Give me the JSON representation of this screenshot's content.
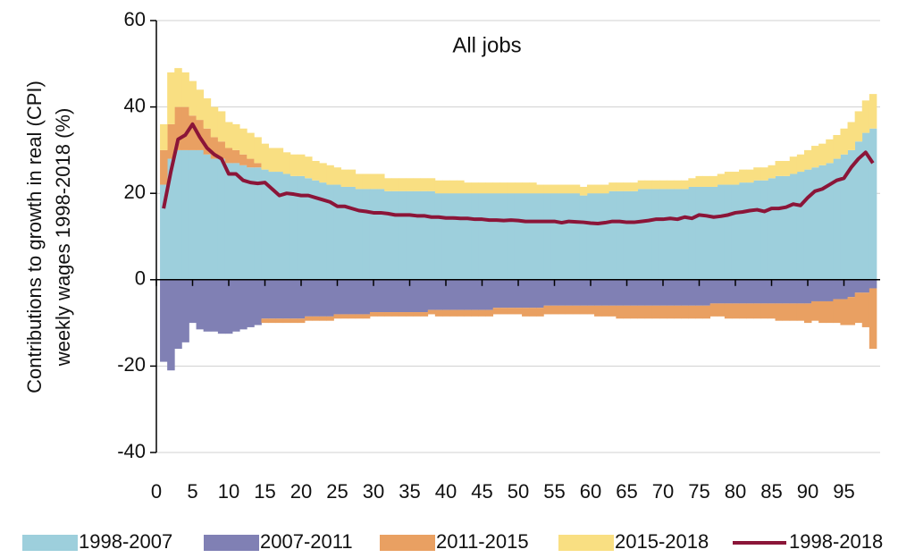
{
  "chart_data": {
    "type": "stacked_bar_line",
    "annotation": "All jobs",
    "ylabel": [
      "Contributions to growth in real (CPI)",
      "weekly wages 1998-2018 (%)"
    ],
    "x": [
      1,
      2,
      3,
      4,
      5,
      6,
      7,
      8,
      9,
      10,
      11,
      12,
      13,
      14,
      15,
      16,
      17,
      18,
      19,
      20,
      21,
      22,
      23,
      24,
      25,
      26,
      27,
      28,
      29,
      30,
      31,
      32,
      33,
      34,
      35,
      36,
      37,
      38,
      39,
      40,
      41,
      42,
      43,
      44,
      45,
      46,
      47,
      48,
      49,
      50,
      51,
      52,
      53,
      54,
      55,
      56,
      57,
      58,
      59,
      60,
      61,
      62,
      63,
      64,
      65,
      66,
      67,
      68,
      69,
      70,
      71,
      72,
      73,
      74,
      75,
      76,
      77,
      78,
      79,
      80,
      81,
      82,
      83,
      84,
      85,
      86,
      87,
      88,
      89,
      90,
      91,
      92,
      93,
      94,
      95,
      96,
      97,
      98,
      99
    ],
    "xlim": [
      0,
      100
    ],
    "xticks": [
      0,
      5,
      10,
      15,
      20,
      25,
      30,
      35,
      40,
      45,
      50,
      55,
      60,
      65,
      70,
      75,
      80,
      85,
      90,
      95
    ],
    "ylim": [
      -40,
      60
    ],
    "yticks": [
      -40,
      -20,
      0,
      20,
      40,
      60
    ],
    "grid": true,
    "series": [
      {
        "name": "1998-2007",
        "color": "#9dcfdc",
        "kind": "bar",
        "values": [
          22,
          28,
          30,
          30,
          30,
          30,
          29,
          28,
          28,
          27,
          27,
          26.5,
          26,
          26,
          25.5,
          25,
          25,
          24.5,
          24,
          24,
          23.5,
          23,
          22.5,
          22,
          22,
          21.5,
          21.5,
          21,
          21,
          21,
          21,
          20.5,
          20.5,
          20.5,
          20.5,
          20.5,
          20.5,
          20.5,
          20,
          20,
          20,
          20,
          20,
          20,
          20,
          20,
          20,
          20,
          20,
          20,
          20,
          20,
          20,
          20,
          20,
          20,
          20,
          20,
          19.5,
          20,
          20,
          20,
          20.5,
          20.5,
          20.5,
          20.5,
          21,
          21,
          21,
          21,
          21,
          21,
          21,
          21.5,
          21.5,
          21.5,
          21.5,
          22,
          22,
          22,
          22.5,
          22.5,
          23,
          23,
          23.5,
          24,
          24,
          24.5,
          25,
          25.5,
          26,
          26.5,
          27,
          28,
          29,
          30,
          32,
          34,
          35
        ]
      },
      {
        "name": "2007-2011",
        "color": "#8080b4",
        "kind": "bar",
        "values": [
          -19,
          -21,
          -16,
          -14.5,
          -10,
          -11.5,
          -12,
          -12,
          -12.5,
          -12.5,
          -12,
          -11.5,
          -11,
          -10.5,
          -9,
          -9,
          -9,
          -9,
          -9,
          -9,
          -8.5,
          -8.5,
          -8.5,
          -8.5,
          -8,
          -8,
          -8,
          -8,
          -8,
          -7.5,
          -7.5,
          -7.5,
          -7.5,
          -7.5,
          -7.5,
          -7.5,
          -7.5,
          -7,
          -7,
          -7,
          -7,
          -7,
          -7,
          -7,
          -7,
          -7,
          -6.5,
          -6.5,
          -6.5,
          -6.5,
          -6.5,
          -6.5,
          -6.5,
          -6,
          -6,
          -6,
          -6,
          -6,
          -6,
          -6,
          -6,
          -6,
          -6,
          -6,
          -6,
          -6,
          -6,
          -6,
          -6,
          -6,
          -6,
          -6,
          -6,
          -6,
          -6,
          -6,
          -5.5,
          -5.5,
          -5.5,
          -5.5,
          -5.5,
          -5.5,
          -5.5,
          -5.5,
          -5.5,
          -5.5,
          -5.5,
          -5.5,
          -5.5,
          -5.5,
          -5,
          -5,
          -5,
          -4.5,
          -4.5,
          -4,
          -3,
          -3,
          -2
        ]
      },
      {
        "name": "2011-2015",
        "color": "#e9a062",
        "kind": "bar",
        "values": [
          8,
          8,
          10,
          10,
          8,
          7,
          6,
          5,
          4,
          3.5,
          3,
          2.5,
          2,
          1,
          -1,
          -1,
          -1,
          -1,
          -1,
          -1,
          -1,
          -1,
          -1,
          -1,
          -1,
          -1,
          -1,
          -1,
          -1,
          -1,
          -1,
          -1,
          -1,
          -1,
          -1,
          -1,
          -1,
          -1,
          -1.5,
          -1.5,
          -1.5,
          -1.5,
          -1.5,
          -1.5,
          -1.5,
          -1.5,
          -1.5,
          -1.5,
          -1.5,
          -1.5,
          -2,
          -2,
          -2,
          -2,
          -2,
          -2,
          -2,
          -2,
          -2,
          -2,
          -2.5,
          -2.5,
          -2.5,
          -3,
          -3,
          -3,
          -3,
          -3,
          -3,
          -3,
          -3,
          -3,
          -3,
          -3,
          -3,
          -3,
          -3,
          -3,
          -3.5,
          -3.5,
          -3.5,
          -3.5,
          -3.5,
          -3.5,
          -3.5,
          -4,
          -4,
          -4,
          -4,
          -4.5,
          -4.5,
          -5,
          -5,
          -5.5,
          -6,
          -6.5,
          -7,
          -8,
          -14
        ]
      },
      {
        "name": "2015-2018",
        "color": "#f9df82",
        "kind": "bar",
        "values": [
          6,
          12,
          9,
          8,
          8,
          7,
          7,
          7,
          7,
          6,
          6,
          6,
          6,
          6,
          6,
          5.5,
          5.5,
          5,
          5,
          5,
          5,
          4.5,
          4.5,
          4.5,
          4,
          4,
          4,
          3.5,
          3.5,
          3.5,
          3.5,
          3,
          3,
          3,
          3,
          3,
          3,
          3,
          3,
          3,
          3,
          3,
          2.5,
          2.5,
          2.5,
          2.5,
          2.5,
          2.5,
          2.5,
          2.5,
          2.5,
          2.5,
          2,
          2,
          2,
          2,
          2,
          2,
          2,
          2,
          2,
          2,
          2,
          2,
          2,
          2,
          2,
          2,
          2,
          2,
          2,
          2,
          2,
          2,
          2.5,
          2.5,
          2.5,
          2.5,
          3,
          3,
          3,
          3,
          3,
          3,
          3,
          3.5,
          3.5,
          4,
          4,
          4.5,
          5,
          5,
          5.5,
          5.5,
          6,
          6.5,
          7,
          7.5,
          8
        ]
      },
      {
        "name": "1998-2018",
        "color": "#8b1538",
        "kind": "line",
        "values": [
          16.5,
          25,
          32.5,
          33.5,
          36,
          33,
          30.5,
          29,
          28,
          24.5,
          24.5,
          23,
          22.5,
          22.3,
          22.5,
          21,
          19.5,
          20,
          19.8,
          19.5,
          19.5,
          19,
          18.5,
          18,
          17,
          17,
          16.5,
          16,
          15.8,
          15.5,
          15.5,
          15.3,
          15,
          15,
          15,
          14.8,
          14.8,
          14.5,
          14.5,
          14.3,
          14.3,
          14.2,
          14.2,
          14,
          14,
          13.8,
          13.8,
          13.7,
          13.8,
          13.7,
          13.5,
          13.5,
          13.5,
          13.5,
          13.5,
          13.2,
          13.5,
          13.4,
          13.3,
          13.1,
          13,
          13.2,
          13.5,
          13.5,
          13.3,
          13.3,
          13.5,
          13.7,
          14,
          14,
          14.2,
          14,
          14.5,
          14.2,
          15,
          14.8,
          14.5,
          14.7,
          15,
          15.5,
          15.7,
          16,
          16.2,
          15.8,
          16.5,
          16.5,
          16.8,
          17.5,
          17.2,
          19,
          20.5,
          21,
          22,
          23,
          23.5,
          26,
          28,
          29.5,
          27
        ]
      }
    ]
  }
}
